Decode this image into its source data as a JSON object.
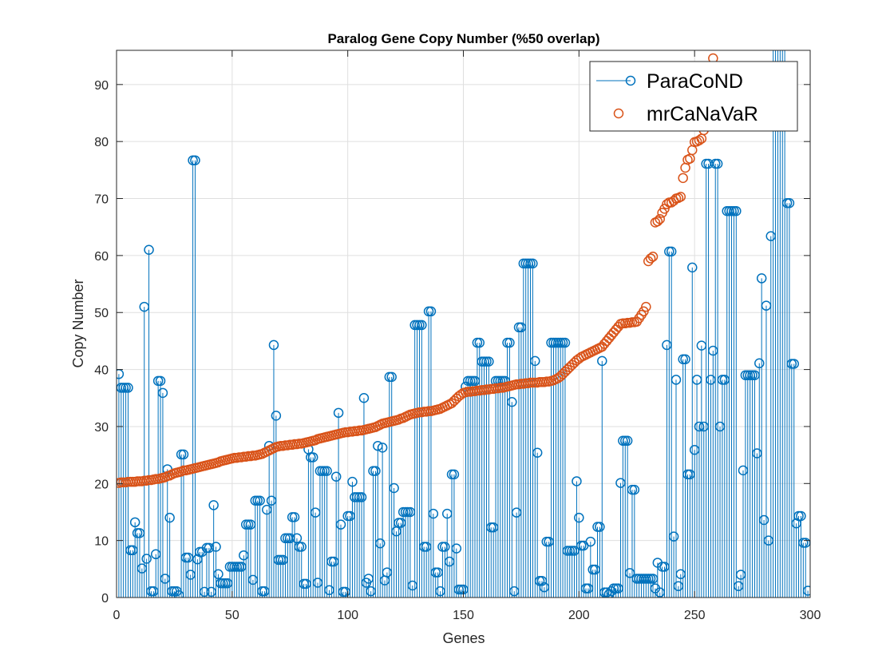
{
  "chart_data": {
    "type": "scatter",
    "title": "Paralog Gene Copy Number (%50 overlap)",
    "xlabel": "Genes",
    "ylabel": "Copy Number",
    "xlim": [
      0,
      300
    ],
    "ylim": [
      0,
      96
    ],
    "xticks": [
      0,
      50,
      100,
      150,
      200,
      250,
      300
    ],
    "yticks": [
      0,
      10,
      20,
      30,
      40,
      50,
      60,
      70,
      80,
      90
    ],
    "grid": true,
    "legend_position": "top-right",
    "colors": {
      "ParaCoND": "#0072BD",
      "mrCaNaVaR": "#D95319"
    },
    "series": [
      {
        "name": "ParaCoND",
        "style": "stem",
        "values": [
          39.2,
          36.8,
          36.8,
          36.8,
          36.8,
          8.3,
          8.3,
          13.2,
          11.3,
          11.3,
          5.1,
          51.0,
          6.8,
          61.0,
          1.1,
          1.1,
          7.6,
          38.0,
          38.0,
          35.9,
          3.3,
          22.5,
          14.0,
          1.1,
          1.1,
          1.1,
          0.4,
          25.1,
          25.1,
          7.0,
          7.0,
          4.0,
          76.7,
          76.7,
          6.7,
          8.0,
          8.0,
          1.0,
          8.7,
          8.7,
          1.0,
          16.2,
          8.9,
          4.1,
          2.5,
          2.5,
          2.5,
          2.5,
          5.4,
          5.4,
          5.4,
          5.4,
          5.4,
          5.4,
          7.4,
          12.8,
          12.8,
          12.8,
          3.1,
          17.0,
          17.0,
          17.0,
          1.1,
          1.1,
          15.4,
          26.6,
          17.0,
          44.3,
          31.9,
          6.6,
          6.6,
          6.6,
          10.4,
          10.4,
          10.4,
          14.1,
          14.1,
          10.4,
          8.9,
          8.9,
          2.4,
          2.4,
          26.0,
          24.6,
          24.6,
          14.9,
          2.6,
          22.2,
          22.2,
          22.2,
          22.2,
          1.3,
          6.3,
          6.3,
          21.2,
          32.4,
          12.8,
          1.0,
          1.0,
          14.3,
          14.3,
          20.3,
          17.6,
          17.6,
          17.6,
          17.6,
          35.0,
          2.6,
          3.3,
          1.1,
          22.2,
          22.2,
          26.6,
          9.5,
          26.3,
          3.0,
          4.4,
          38.7,
          38.7,
          19.2,
          11.6,
          13.1,
          13.1,
          15.0,
          15.0,
          15.0,
          15.0,
          2.1,
          47.8,
          47.8,
          47.8,
          47.8,
          8.9,
          8.9,
          50.2,
          50.2,
          14.7,
          4.4,
          4.4,
          1.1,
          8.9,
          8.9,
          14.7,
          6.3,
          21.6,
          21.6,
          8.6,
          1.4,
          1.4,
          1.4,
          37.0,
          38.0,
          38.0,
          38.0,
          38.0,
          44.7,
          44.7,
          41.4,
          41.4,
          41.4,
          41.4,
          12.3,
          12.3,
          38.0,
          38.0,
          38.0,
          38.0,
          38.0,
          44.7,
          44.7,
          34.3,
          1.1,
          14.9,
          47.4,
          47.4,
          58.6,
          58.6,
          58.6,
          58.6,
          58.6,
          41.5,
          25.4,
          2.9,
          2.9,
          1.8,
          9.8,
          9.8,
          44.7,
          44.7,
          44.7,
          44.7,
          44.7,
          44.7,
          44.7,
          8.2,
          8.2,
          8.2,
          8.2,
          20.4,
          14.0,
          9.1,
          9.1,
          1.6,
          1.6,
          9.8,
          4.9,
          4.9,
          12.4,
          12.4,
          41.5,
          0.9,
          0.9,
          0.6,
          1.1,
          1.6,
          1.6,
          1.6,
          20.1,
          27.5,
          27.5,
          27.5,
          4.3,
          18.9,
          18.9,
          3.3,
          3.3,
          3.3,
          3.3,
          3.3,
          3.3,
          3.3,
          3.3,
          1.6,
          6.1,
          0.9,
          5.4,
          5.4,
          44.3,
          60.7,
          60.7,
          10.7,
          38.2,
          2.0,
          4.1,
          41.8,
          41.8,
          21.6,
          21.6,
          57.9,
          25.9,
          38.2,
          30.0,
          44.2,
          30.0,
          76.1,
          76.1,
          38.2,
          43.3,
          76.1,
          76.1,
          30.0,
          38.2,
          38.2,
          67.8,
          67.8,
          67.8,
          67.8,
          67.8,
          2.0,
          4.0,
          22.3,
          39.0,
          39.0,
          39.0,
          39.0,
          39.0,
          25.3,
          41.1,
          56.0,
          13.6,
          51.2,
          10.0,
          63.4,
          99,
          99,
          99,
          99,
          99,
          99,
          69.2,
          69.2,
          41.0,
          41.0,
          13.0,
          14.3,
          14.3,
          9.6,
          9.6,
          1.2
        ]
      },
      {
        "name": "mrCaNaVaR",
        "style": "markers",
        "values": [
          20.1,
          20.2,
          20.2,
          20.2,
          20.3,
          20.3,
          20.3,
          20.3,
          20.4,
          20.4,
          20.4,
          20.5,
          20.5,
          20.6,
          20.6,
          20.7,
          20.8,
          20.8,
          20.9,
          21.0,
          21.1,
          21.3,
          21.4,
          21.6,
          21.8,
          21.9,
          22.0,
          22.1,
          22.3,
          22.3,
          22.4,
          22.5,
          22.6,
          22.7,
          22.8,
          22.9,
          23.0,
          23.1,
          23.2,
          23.3,
          23.4,
          23.5,
          23.6,
          23.7,
          23.9,
          24.0,
          24.1,
          24.2,
          24.3,
          24.4,
          24.5,
          24.5,
          24.6,
          24.6,
          24.7,
          24.7,
          24.8,
          24.8,
          24.9,
          24.9,
          25.0,
          25.1,
          25.2,
          25.4,
          25.6,
          25.8,
          26.0,
          26.2,
          26.4,
          26.5,
          26.6,
          26.6,
          26.7,
          26.7,
          26.8,
          26.8,
          26.9,
          26.9,
          27.0,
          27.0,
          27.1,
          27.2,
          27.3,
          27.4,
          27.5,
          27.6,
          27.8,
          27.9,
          28.0,
          28.1,
          28.2,
          28.3,
          28.4,
          28.5,
          28.6,
          28.7,
          28.8,
          28.9,
          29.0,
          29.0,
          29.1,
          29.1,
          29.2,
          29.2,
          29.3,
          29.3,
          29.4,
          29.5,
          29.6,
          29.7,
          29.8,
          29.9,
          30.1,
          30.3,
          30.5,
          30.6,
          30.7,
          30.8,
          30.9,
          31.0,
          31.1,
          31.2,
          31.4,
          31.5,
          31.7,
          31.9,
          32.1,
          32.2,
          32.3,
          32.4,
          32.5,
          32.5,
          32.6,
          32.6,
          32.7,
          32.7,
          32.8,
          32.9,
          33.0,
          33.1,
          33.3,
          33.5,
          33.7,
          33.9,
          34.1,
          34.5,
          34.9,
          35.3,
          35.6,
          35.9,
          36.0,
          36.1,
          36.1,
          36.2,
          36.2,
          36.3,
          36.3,
          36.4,
          36.4,
          36.5,
          36.5,
          36.6,
          36.6,
          36.7,
          36.7,
          36.8,
          36.8,
          36.9,
          37.0,
          37.1,
          37.2,
          37.3,
          37.4,
          37.4,
          37.5,
          37.5,
          37.6,
          37.6,
          37.7,
          37.7,
          37.7,
          37.7,
          37.8,
          37.8,
          37.8,
          37.9,
          37.9,
          38.0,
          38.1,
          38.3,
          38.5,
          38.8,
          39.2,
          39.6,
          40.0,
          40.4,
          40.8,
          41.2,
          41.6,
          41.9,
          42.2,
          42.4,
          42.6,
          42.8,
          43.0,
          43.2,
          43.4,
          43.6,
          43.8,
          44.0,
          44.5,
          45.0,
          45.5,
          46.0,
          46.5,
          47.0,
          47.5,
          48.0,
          48.1,
          48.1,
          48.2,
          48.2,
          48.3,
          48.3,
          48.4,
          49.0,
          49.6,
          50.2,
          51.0,
          59.0,
          59.5,
          59.8,
          65.8,
          66.0,
          66.4,
          67.5,
          68.2,
          69.0,
          69.3,
          69.3,
          69.6,
          70.0,
          70.1,
          70.3,
          73.6,
          75.4,
          76.8,
          77.0,
          78.5,
          79.9,
          80.0,
          80.2,
          80.5,
          82.0,
          85.0,
          88.0,
          91.0,
          94.6
        ]
      }
    ]
  }
}
